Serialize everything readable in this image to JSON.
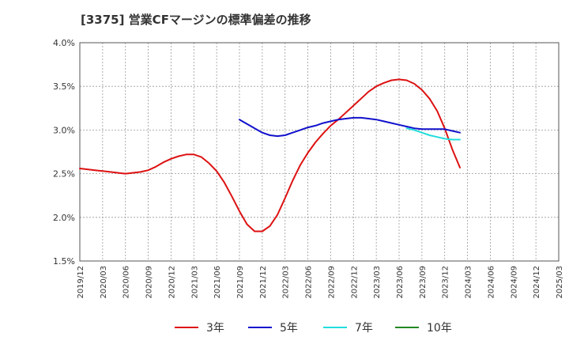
{
  "chart_data": {
    "type": "line",
    "title": "[3375]  営業CFマージンの標準偏差の推移",
    "xlabel": "",
    "ylabel": "",
    "x_ticks": [
      "2019/12",
      "2020/03",
      "2020/06",
      "2020/09",
      "2020/12",
      "2021/03",
      "2021/06",
      "2021/09",
      "2021/12",
      "2022/03",
      "2022/06",
      "2022/09",
      "2022/12",
      "2023/03",
      "2023/06",
      "2023/09",
      "2023/12",
      "2024/03",
      "2024/06",
      "2024/09",
      "2024/12",
      "2025/03"
    ],
    "y_ticks": [
      "1.5%",
      "2.0%",
      "2.5%",
      "3.0%",
      "3.5%",
      "4.0%"
    ],
    "ylim": [
      1.5,
      4.0
    ],
    "grid": true,
    "legend_position": "bottom",
    "series": [
      {
        "name": "3年",
        "color": "#dd1111",
        "points": [
          [
            "2019/12",
            2.56
          ],
          [
            "2020/01",
            2.55
          ],
          [
            "2020/02",
            2.54
          ],
          [
            "2020/03",
            2.53
          ],
          [
            "2020/04",
            2.52
          ],
          [
            "2020/05",
            2.51
          ],
          [
            "2020/06",
            2.5
          ],
          [
            "2020/07",
            2.51
          ],
          [
            "2020/08",
            2.52
          ],
          [
            "2020/09",
            2.54
          ],
          [
            "2020/10",
            2.58
          ],
          [
            "2020/11",
            2.63
          ],
          [
            "2020/12",
            2.67
          ],
          [
            "2021/01",
            2.7
          ],
          [
            "2021/02",
            2.72
          ],
          [
            "2021/03",
            2.72
          ],
          [
            "2021/04",
            2.69
          ],
          [
            "2021/05",
            2.62
          ],
          [
            "2021/06",
            2.53
          ],
          [
            "2021/07",
            2.4
          ],
          [
            "2021/08",
            2.24
          ],
          [
            "2021/09",
            2.07
          ],
          [
            "2021/10",
            1.92
          ],
          [
            "2021/11",
            1.84
          ],
          [
            "2021/12",
            1.84
          ],
          [
            "2022/01",
            1.9
          ],
          [
            "2022/02",
            2.03
          ],
          [
            "2022/03",
            2.22
          ],
          [
            "2022/04",
            2.42
          ],
          [
            "2022/05",
            2.6
          ],
          [
            "2022/06",
            2.74
          ],
          [
            "2022/07",
            2.86
          ],
          [
            "2022/08",
            2.96
          ],
          [
            "2022/09",
            3.05
          ],
          [
            "2022/10",
            3.12
          ],
          [
            "2022/11",
            3.2
          ],
          [
            "2022/12",
            3.28
          ],
          [
            "2023/01",
            3.36
          ],
          [
            "2023/02",
            3.44
          ],
          [
            "2023/03",
            3.5
          ],
          [
            "2023/04",
            3.54
          ],
          [
            "2023/05",
            3.57
          ],
          [
            "2023/06",
            3.58
          ],
          [
            "2023/07",
            3.57
          ],
          [
            "2023/08",
            3.53
          ],
          [
            "2023/09",
            3.46
          ],
          [
            "2023/10",
            3.36
          ],
          [
            "2023/11",
            3.22
          ],
          [
            "2023/12",
            3.02
          ],
          [
            "2024/01",
            2.78
          ],
          [
            "2024/02",
            2.57
          ]
        ]
      },
      {
        "name": "5年",
        "color": "#1111cc",
        "points": [
          [
            "2021/09",
            3.12
          ],
          [
            "2021/10",
            3.07
          ],
          [
            "2021/11",
            3.02
          ],
          [
            "2021/12",
            2.97
          ],
          [
            "2022/01",
            2.94
          ],
          [
            "2022/02",
            2.93
          ],
          [
            "2022/03",
            2.94
          ],
          [
            "2022/04",
            2.97
          ],
          [
            "2022/05",
            3.0
          ],
          [
            "2022/06",
            3.03
          ],
          [
            "2022/07",
            3.05
          ],
          [
            "2022/08",
            3.08
          ],
          [
            "2022/09",
            3.1
          ],
          [
            "2022/10",
            3.12
          ],
          [
            "2022/11",
            3.13
          ],
          [
            "2022/12",
            3.14
          ],
          [
            "2023/01",
            3.14
          ],
          [
            "2023/02",
            3.13
          ],
          [
            "2023/03",
            3.12
          ],
          [
            "2023/04",
            3.1
          ],
          [
            "2023/05",
            3.08
          ],
          [
            "2023/06",
            3.06
          ],
          [
            "2023/07",
            3.04
          ],
          [
            "2023/08",
            3.02
          ],
          [
            "2023/09",
            3.01
          ],
          [
            "2023/10",
            3.01
          ],
          [
            "2023/11",
            3.01
          ],
          [
            "2023/12",
            3.01
          ],
          [
            "2024/01",
            2.99
          ],
          [
            "2024/02",
            2.97
          ]
        ]
      },
      {
        "name": "7年",
        "color": "#22dddd",
        "points": [
          [
            "2023/07",
            3.02
          ],
          [
            "2023/08",
            3.0
          ],
          [
            "2023/09",
            2.97
          ],
          [
            "2023/10",
            2.94
          ],
          [
            "2023/11",
            2.92
          ],
          [
            "2023/12",
            2.9
          ],
          [
            "2024/01",
            2.89
          ],
          [
            "2024/02",
            2.89
          ]
        ]
      },
      {
        "name": "10年",
        "color": "#228822",
        "points": []
      }
    ]
  }
}
